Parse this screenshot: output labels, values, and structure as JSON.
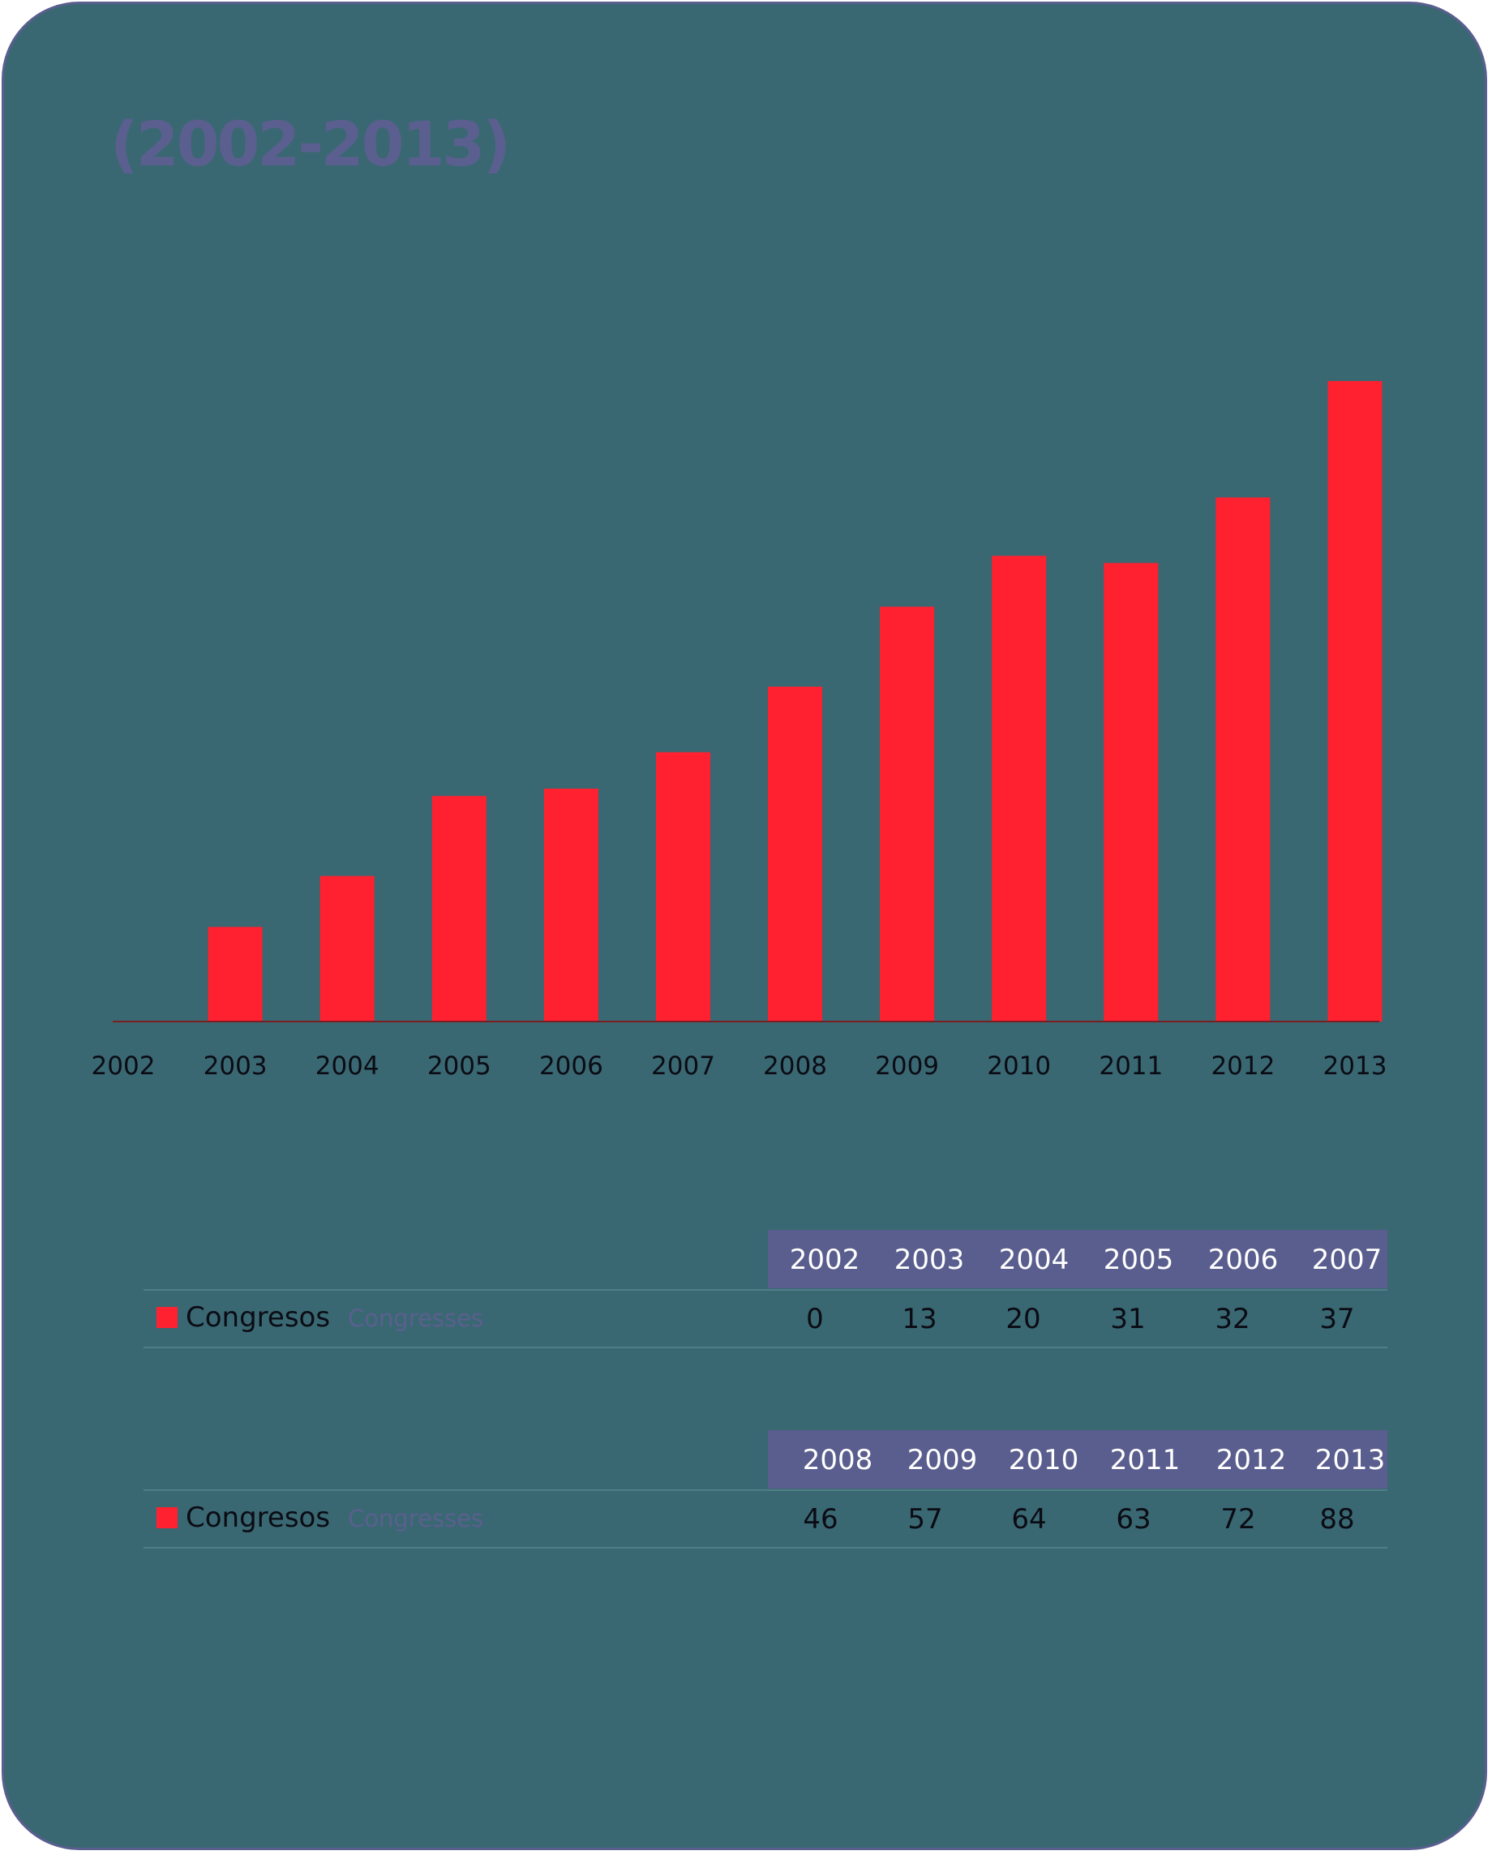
{
  "title": "(2002-2013)",
  "colors": {
    "background": "#396872",
    "border": "#5a5e8e",
    "bar": "#ff2030",
    "title": "#5b5f8f",
    "table_header": "#5a5e8e"
  },
  "chart_data": {
    "type": "bar",
    "categories": [
      "2002",
      "2003",
      "2004",
      "2005",
      "2006",
      "2007",
      "2008",
      "2009",
      "2010",
      "2011",
      "2012",
      "2013"
    ],
    "series": [
      {
        "name": "Congresos",
        "values": [
          0,
          13,
          20,
          31,
          32,
          37,
          46,
          57,
          64,
          63,
          72,
          88
        ]
      }
    ],
    "ylim": [
      0,
      88
    ],
    "grid": false,
    "legend": "none"
  },
  "tables": [
    {
      "years": [
        "2002",
        "2003",
        "2004",
        "2005",
        "2006",
        "2007"
      ],
      "series_label": "Congresos",
      "series_sublabel": "Congresses",
      "values": [
        "0",
        "13",
        "20",
        "31",
        "32",
        "37"
      ]
    },
    {
      "years": [
        "2008",
        "2009",
        "2010",
        "2011",
        "2012",
        "2013"
      ],
      "series_label": "Congresos",
      "series_sublabel": "Congresses",
      "values": [
        "46",
        "57",
        "64",
        "63",
        "72",
        "88"
      ]
    }
  ]
}
